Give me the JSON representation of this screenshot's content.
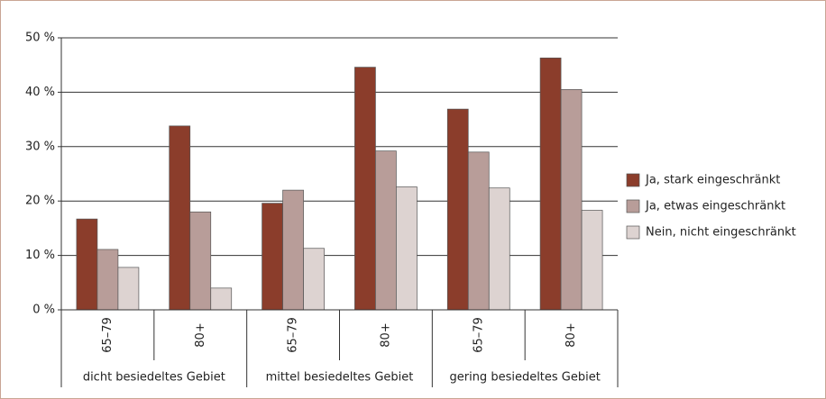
{
  "chart_data": {
    "type": "bar",
    "categories": [
      "65–79",
      "80+",
      "65–79",
      "80+",
      "65–79",
      "80+"
    ],
    "groups": [
      "dicht besiedeltes Gebiet",
      "mittel besiedeltes Gebiet",
      "gering besiedeltes Gebiet"
    ],
    "series": [
      {
        "name": "Ja, stark eingeschränkt",
        "color": "#8b3d2b",
        "values": [
          16.7,
          33.8,
          19.6,
          44.6,
          36.9,
          46.3
        ]
      },
      {
        "name": "Ja, etwas eingeschränkt",
        "color": "#b89d99",
        "values": [
          11.1,
          18.0,
          22.0,
          29.2,
          29.0,
          40.5
        ]
      },
      {
        "name": "Nein, nicht eingeschränkt",
        "color": "#ddd3d1",
        "values": [
          7.8,
          4.0,
          11.3,
          22.6,
          22.4,
          18.3
        ]
      }
    ],
    "ylim": [
      0,
      50
    ],
    "yticks": [
      {
        "value": 0,
        "label": "0 %"
      },
      {
        "value": 10,
        "label": "10 %"
      },
      {
        "value": 20,
        "label": "20 %"
      },
      {
        "value": 30,
        "label": "30 %"
      },
      {
        "value": 40,
        "label": "40 %"
      },
      {
        "value": 50,
        "label": "50 %"
      }
    ],
    "grid": true,
    "legend": "right"
  }
}
